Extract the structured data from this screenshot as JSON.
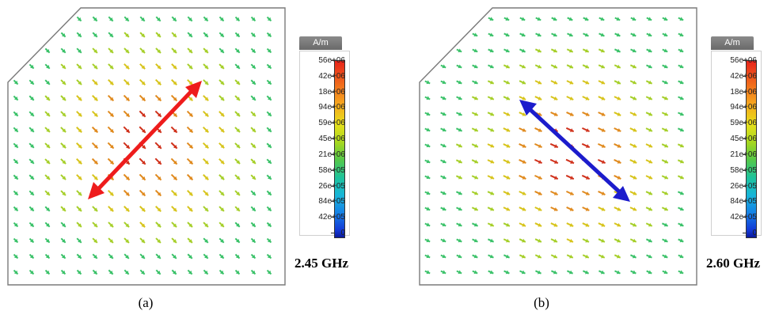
{
  "panels": [
    {
      "id": "a",
      "unit": "A/m",
      "scale_labels": [
        "56e+06",
        "42e+06",
        "18e+06",
        "94e+06",
        "59e+06",
        "45e+06",
        "21e+06",
        "58e+05",
        "26e+05",
        "84e+05",
        "42e+05",
        "0"
      ],
      "frequency": "2.45 GHz",
      "caption": "(a)",
      "overlay_color": "#ee1c1c"
    },
    {
      "id": "b",
      "unit": "A/m",
      "scale_labels": [
        "56e+06",
        "42e+06",
        "18e+06",
        "94e+06",
        "59e+06",
        "45e+06",
        "21e+06",
        "58e+05",
        "26e+05",
        "84e+05",
        "42e+05",
        "0"
      ],
      "frequency": "2.60 GHz",
      "caption": "(b)",
      "overlay_color": "#1c1ccc"
    }
  ]
}
